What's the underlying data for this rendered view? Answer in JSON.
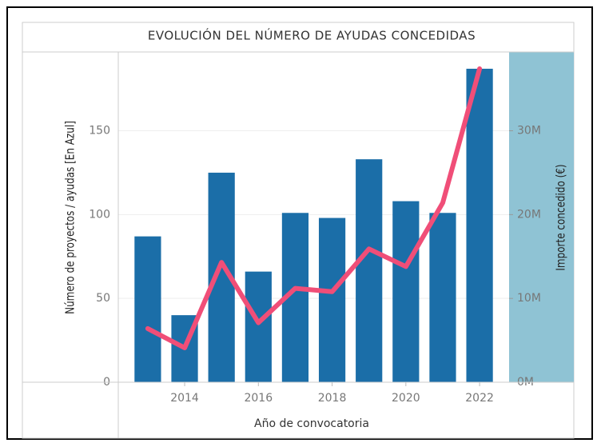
{
  "chart_data": {
    "type": "bar",
    "title": "EVOLUCIÓN DEL NÚMERO DE AYUDAS CONCEDIDAS",
    "x_label": "Año de convocatoria",
    "y_label": "Número de proyectos / ayudas [En Azul]",
    "y2_label": "Importe concedido (€)",
    "x": [
      2013,
      2014,
      2015,
      2016,
      2017,
      2018,
      2019,
      2020,
      2021,
      2022
    ],
    "xlim": [
      2012.2,
      2022.8
    ],
    "xticks": [
      2014,
      2016,
      2018,
      2020,
      2022
    ],
    "ylim": [
      0,
      197
    ],
    "yticks": [
      0,
      50,
      100,
      150
    ],
    "y2lim": [
      0,
      39400000
    ],
    "y2ticks": [
      {
        "value": 0,
        "label": "0M"
      },
      {
        "value": 10000000,
        "label": "10M"
      },
      {
        "value": 20000000,
        "label": "20M"
      },
      {
        "value": 30000000,
        "label": "30M"
      }
    ],
    "grid": true,
    "series": [
      {
        "type": "bar",
        "color": "#1b6ea8",
        "values": [
          87,
          40,
          125,
          66,
          101,
          98,
          133,
          108,
          101,
          187
        ]
      },
      {
        "type": "line",
        "axis": "y2",
        "color": "#f04e78",
        "values": [
          6400000,
          4100000,
          14300000,
          7100000,
          11200000,
          10800000,
          15900000,
          13800000,
          21400000,
          37400000
        ]
      }
    ]
  }
}
